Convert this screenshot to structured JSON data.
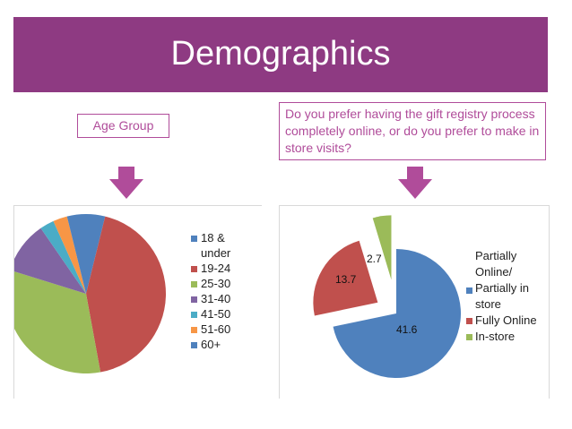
{
  "header": {
    "title": "Demographics"
  },
  "left_label": "Age Group",
  "right_label": "Do you prefer having the gift registry process completely online, or do you prefer to make in store visits?",
  "colors": {
    "banner": "#8e3a82",
    "arrow": "#b04c9a"
  },
  "chart_data": [
    {
      "type": "pie",
      "title": "",
      "legend_position": "right",
      "series": [
        {
          "name": "18 & under",
          "value": 4,
          "color": "#4f81bd"
        },
        {
          "name": "19-24",
          "value": 45,
          "color": "#c0504d"
        },
        {
          "name": "25-30",
          "value": 34,
          "color": "#9bbb59"
        },
        {
          "name": "31-40",
          "value": 11,
          "color": "#8064a2"
        },
        {
          "name": "41-50",
          "value": 3,
          "color": "#4bacc6"
        },
        {
          "name": "51-60",
          "value": 3,
          "color": "#f79646"
        },
        {
          "name": "60+",
          "value": 4,
          "color": "#4f81bd"
        }
      ]
    },
    {
      "type": "pie",
      "title": "",
      "legend_position": "right",
      "series": [
        {
          "name": "Partially Online/ Partially in store",
          "value": 41.6,
          "label": "41.6",
          "color": "#4f81bd"
        },
        {
          "name": "Fully Online",
          "value": 13.7,
          "label": "13.7",
          "color": "#c0504d"
        },
        {
          "name": "In-store",
          "value": 2.7,
          "label": "2.7",
          "color": "#9bbb59"
        }
      ]
    }
  ]
}
